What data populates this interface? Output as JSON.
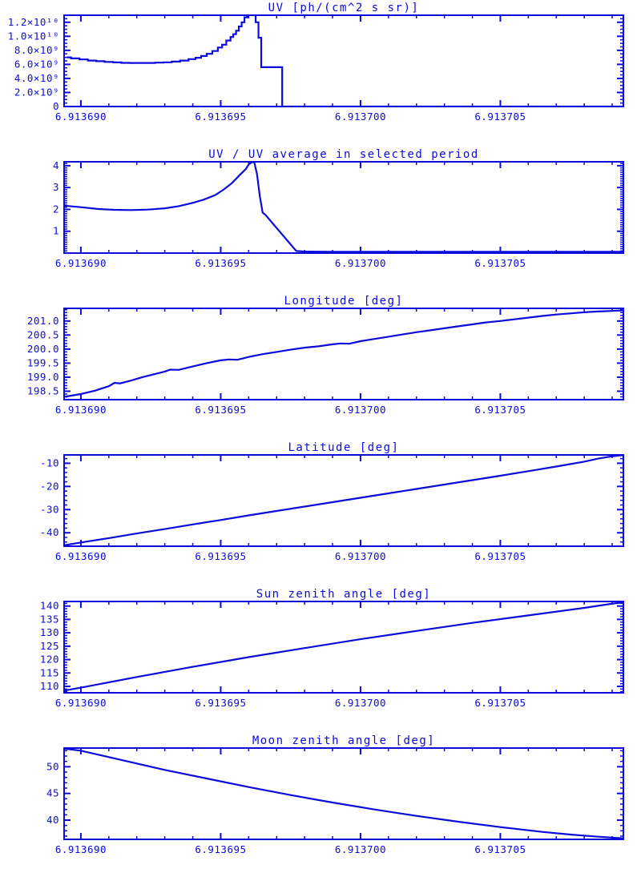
{
  "accent": "#0b0bdb",
  "page_bg": "#ffffff",
  "x_axis": {
    "lim": [
      6.9136894,
      6.9137094
    ],
    "major_step": 5e-06,
    "minor_step": 1e-06,
    "tick_labels": [
      {
        "v": 6.91369,
        "label": "6.913690"
      },
      {
        "v": 6.913695,
        "label": "6.913695"
      },
      {
        "v": 6.9137,
        "label": "6.913700"
      },
      {
        "v": 6.913705,
        "label": "6.913705"
      }
    ]
  },
  "chart_data": [
    {
      "id": "uv",
      "type": "histogram-line",
      "title": "UV [ph/(cm^2 s sr)]",
      "xlabel": "",
      "ylabel": "",
      "ylim": [
        0,
        13000000000.0
      ],
      "y_minor_step": 500000000.0,
      "y_major": [
        {
          "v": 0,
          "label": "0"
        },
        {
          "v": 2000000000.0,
          "label": "2.0×10⁹"
        },
        {
          "v": 4000000000.0,
          "label": "4.0×10⁹"
        },
        {
          "v": 6000000000.0,
          "label": "6.0×10⁹"
        },
        {
          "v": 8000000000.0,
          "label": "8.0×10⁹"
        },
        {
          "v": 10000000000.0,
          "label": "1.0×10¹⁰"
        },
        {
          "v": 12000000000.0,
          "label": "1.2×10¹⁰"
        }
      ],
      "points": [
        [
          6.9136895,
          7000000000.0
        ],
        [
          6.9136898,
          6850000000.0
        ],
        [
          6.9136901,
          6700000000.0
        ],
        [
          6.9136904,
          6550000000.0
        ],
        [
          6.9136907,
          6450000000.0
        ],
        [
          6.913691,
          6350000000.0
        ],
        [
          6.9136913,
          6280000000.0
        ],
        [
          6.9136916,
          6220000000.0
        ],
        [
          6.9136919,
          6200000000.0
        ],
        [
          6.9136922,
          6200000000.0
        ],
        [
          6.9136925,
          6200000000.0
        ],
        [
          6.9136928,
          6250000000.0
        ],
        [
          6.9136931,
          6300000000.0
        ],
        [
          6.9136934,
          6400000000.0
        ],
        [
          6.9136937,
          6550000000.0
        ],
        [
          6.913694,
          6750000000.0
        ],
        [
          6.9136942,
          6950000000.0
        ],
        [
          6.9136944,
          7200000000.0
        ],
        [
          6.9136946,
          7500000000.0
        ],
        [
          6.9136948,
          7900000000.0
        ],
        [
          6.913695,
          8400000000.0
        ],
        [
          6.9136951,
          8800000000.0
        ],
        [
          6.9136953,
          9400000000.0
        ],
        [
          6.9136954,
          9900000000.0
        ],
        [
          6.9136955,
          10300000000.0
        ],
        [
          6.9136956,
          10800000000.0
        ],
        [
          6.9136957,
          11400000000.0
        ],
        [
          6.9136958,
          12000000000.0
        ],
        [
          6.9136959,
          12700000000.0
        ],
        [
          6.913696,
          13300000000.0
        ],
        [
          6.9136961,
          13500000000.0
        ],
        [
          6.9136962,
          13400000000.0
        ],
        [
          6.9136963,
          12000000000.0
        ],
        [
          6.9136964,
          9800000000.0
        ],
        [
          6.9136965,
          5600000000.0
        ],
        [
          6.9136967,
          5600000000.0
        ],
        [
          6.9136969,
          5600000000.0
        ],
        [
          6.9136971,
          5600000000.0
        ],
        [
          6.9136973,
          0
        ],
        [
          6.9136978,
          0
        ],
        [
          6.9136985,
          0
        ],
        [
          6.9137,
          0
        ],
        [
          6.913702,
          0
        ],
        [
          6.913704,
          0
        ],
        [
          6.913706,
          0
        ],
        [
          6.913708,
          0
        ],
        [
          6.9137094,
          0
        ]
      ]
    },
    {
      "id": "uv-ratio",
      "type": "line",
      "title": "UV / UV average in selected period",
      "xlabel": "",
      "ylabel": "",
      "ylim": [
        0,
        4.18
      ],
      "y_minor_step": 0.1,
      "y_major": [
        {
          "v": 1,
          "label": "1"
        },
        {
          "v": 2,
          "label": "2"
        },
        {
          "v": 3,
          "label": "3"
        },
        {
          "v": 4,
          "label": "4"
        }
      ],
      "points": [
        [
          6.9136894,
          2.17
        ],
        [
          6.91369,
          2.1
        ],
        [
          6.9136906,
          2.02
        ],
        [
          6.9136912,
          1.98
        ],
        [
          6.9136918,
          1.97
        ],
        [
          6.9136924,
          1.99
        ],
        [
          6.913693,
          2.05
        ],
        [
          6.9136935,
          2.15
        ],
        [
          6.913694,
          2.3
        ],
        [
          6.9136944,
          2.45
        ],
        [
          6.9136948,
          2.65
        ],
        [
          6.9136951,
          2.9
        ],
        [
          6.9136954,
          3.2
        ],
        [
          6.9136957,
          3.6
        ],
        [
          6.9136959,
          3.85
        ],
        [
          6.913696,
          4.05
        ],
        [
          6.9136961,
          4.15
        ],
        [
          6.9136962,
          4.17
        ],
        [
          6.9136963,
          3.6
        ],
        [
          6.9136964,
          2.6
        ],
        [
          6.9136965,
          1.85
        ],
        [
          6.9136966,
          1.75
        ],
        [
          6.9136969,
          1.3
        ],
        [
          6.9136972,
          0.85
        ],
        [
          6.9136975,
          0.4
        ],
        [
          6.9136977,
          0.1
        ],
        [
          6.913698,
          0.07
        ],
        [
          6.913699,
          0.06
        ],
        [
          6.9137,
          0.06
        ],
        [
          6.913702,
          0.06
        ],
        [
          6.913705,
          0.06
        ],
        [
          6.913708,
          0.06
        ],
        [
          6.9137094,
          0.06
        ]
      ]
    },
    {
      "id": "longitude",
      "type": "line",
      "title": "Longitude [deg]",
      "xlabel": "",
      "ylabel": "",
      "ylim": [
        198.2,
        201.45
      ],
      "y_minor_step": 0.1,
      "y_major": [
        {
          "v": 198.5,
          "label": "198.5"
        },
        {
          "v": 199.0,
          "label": "199.0"
        },
        {
          "v": 199.5,
          "label": "199.5"
        },
        {
          "v": 200.0,
          "label": "200.0"
        },
        {
          "v": 200.5,
          "label": "200.5"
        },
        {
          "v": 201.0,
          "label": "201.0"
        }
      ],
      "points": [
        [
          6.9136894,
          198.3
        ],
        [
          6.91369,
          198.4
        ],
        [
          6.9136905,
          198.52
        ],
        [
          6.913691,
          198.68
        ],
        [
          6.9136912,
          198.8
        ],
        [
          6.9136914,
          198.78
        ],
        [
          6.9136918,
          198.88
        ],
        [
          6.9136922,
          199.0
        ],
        [
          6.9136926,
          199.1
        ],
        [
          6.913693,
          199.2
        ],
        [
          6.9136932,
          199.27
        ],
        [
          6.9136935,
          199.26
        ],
        [
          6.913694,
          199.38
        ],
        [
          6.9136945,
          199.5
        ],
        [
          6.913695,
          199.6
        ],
        [
          6.9136953,
          199.63
        ],
        [
          6.9136956,
          199.62
        ],
        [
          6.913696,
          199.72
        ],
        [
          6.9136965,
          199.82
        ],
        [
          6.913697,
          199.9
        ],
        [
          6.9136975,
          199.98
        ],
        [
          6.913698,
          200.05
        ],
        [
          6.9136985,
          200.1
        ],
        [
          6.913699,
          200.17
        ],
        [
          6.9136993,
          200.2
        ],
        [
          6.9136996,
          200.19
        ],
        [
          6.9137,
          200.28
        ],
        [
          6.9137005,
          200.36
        ],
        [
          6.913701,
          200.44
        ],
        [
          6.9137015,
          200.52
        ],
        [
          6.913702,
          200.6
        ],
        [
          6.9137025,
          200.67
        ],
        [
          6.913703,
          200.74
        ],
        [
          6.9137035,
          200.81
        ],
        [
          6.913704,
          200.88
        ],
        [
          6.9137045,
          200.95
        ],
        [
          6.913705,
          201.0
        ],
        [
          6.9137055,
          201.06
        ],
        [
          6.913706,
          201.12
        ],
        [
          6.9137065,
          201.18
        ],
        [
          6.913707,
          201.23
        ],
        [
          6.9137075,
          201.27
        ],
        [
          6.913708,
          201.31
        ],
        [
          6.9137085,
          201.34
        ],
        [
          6.913709,
          201.36
        ],
        [
          6.9137094,
          201.38
        ]
      ]
    },
    {
      "id": "latitude",
      "type": "line",
      "title": "Latitude [deg]",
      "xlabel": "",
      "ylabel": "",
      "ylim": [
        -45.8,
        -6.4
      ],
      "y_minor_step": 2,
      "y_major": [
        {
          "v": -40,
          "label": "-40"
        },
        {
          "v": -30,
          "label": "-30"
        },
        {
          "v": -20,
          "label": "-20"
        },
        {
          "v": -10,
          "label": "-10"
        }
      ],
      "points": [
        [
          6.9136894,
          -45.4
        ],
        [
          6.9136901,
          -44.0
        ],
        [
          6.913691,
          -42.3
        ],
        [
          6.913692,
          -40.3
        ],
        [
          6.913693,
          -38.4
        ],
        [
          6.913694,
          -36.4
        ],
        [
          6.913695,
          -34.5
        ],
        [
          6.913696,
          -32.5
        ],
        [
          6.913697,
          -30.6
        ],
        [
          6.913698,
          -28.7
        ],
        [
          6.913699,
          -26.8
        ],
        [
          6.9137,
          -24.9
        ],
        [
          6.913701,
          -23.0
        ],
        [
          6.913702,
          -21.1
        ],
        [
          6.913703,
          -19.2
        ],
        [
          6.913704,
          -17.3
        ],
        [
          6.913705,
          -15.4
        ],
        [
          6.913706,
          -13.4
        ],
        [
          6.913707,
          -11.4
        ],
        [
          6.913708,
          -9.3
        ],
        [
          6.9137085,
          -8.0
        ],
        [
          6.913709,
          -7.0
        ],
        [
          6.9137094,
          -6.5
        ]
      ]
    },
    {
      "id": "sun-zenith",
      "type": "line",
      "title": "Sun zenith angle [deg]",
      "xlabel": "",
      "ylabel": "",
      "ylim": [
        107.6,
        141.7
      ],
      "y_minor_step": 1,
      "y_major": [
        {
          "v": 110,
          "label": "110"
        },
        {
          "v": 115,
          "label": "115"
        },
        {
          "v": 120,
          "label": "120"
        },
        {
          "v": 125,
          "label": "125"
        },
        {
          "v": 130,
          "label": "130"
        },
        {
          "v": 135,
          "label": "135"
        },
        {
          "v": 140,
          "label": "140"
        }
      ],
      "points": [
        [
          6.9136894,
          108.4
        ],
        [
          6.91369,
          109.5
        ],
        [
          6.913692,
          113.5
        ],
        [
          6.913694,
          117.3
        ],
        [
          6.913696,
          120.9
        ],
        [
          6.913698,
          124.3
        ],
        [
          6.9137,
          127.6
        ],
        [
          6.913702,
          130.7
        ],
        [
          6.913704,
          133.7
        ],
        [
          6.913706,
          136.5
        ],
        [
          6.913708,
          139.3
        ],
        [
          6.913709,
          140.9
        ],
        [
          6.9137094,
          141.3
        ]
      ]
    },
    {
      "id": "moon-zenith",
      "type": "line",
      "title": "Moon zenith angle [deg]",
      "xlabel": "",
      "ylabel": "",
      "ylim": [
        36.4,
        53.5
      ],
      "y_minor_step": 1,
      "y_major": [
        {
          "v": 40,
          "label": "40"
        },
        {
          "v": 45,
          "label": "45"
        },
        {
          "v": 50,
          "label": "50"
        }
      ],
      "points": [
        [
          6.9136894,
          53.4
        ],
        [
          6.91369,
          53.0
        ],
        [
          6.9136915,
          51.2
        ],
        [
          6.913693,
          49.4
        ],
        [
          6.9136945,
          47.8
        ],
        [
          6.913696,
          46.2
        ],
        [
          6.9136975,
          44.7
        ],
        [
          6.913699,
          43.3
        ],
        [
          6.9137005,
          42.0
        ],
        [
          6.913702,
          40.8
        ],
        [
          6.9137035,
          39.7
        ],
        [
          6.913705,
          38.7
        ],
        [
          6.9137065,
          37.8
        ],
        [
          6.9137075,
          37.3
        ],
        [
          6.9137085,
          36.9
        ],
        [
          6.9137094,
          36.6
        ]
      ]
    }
  ]
}
